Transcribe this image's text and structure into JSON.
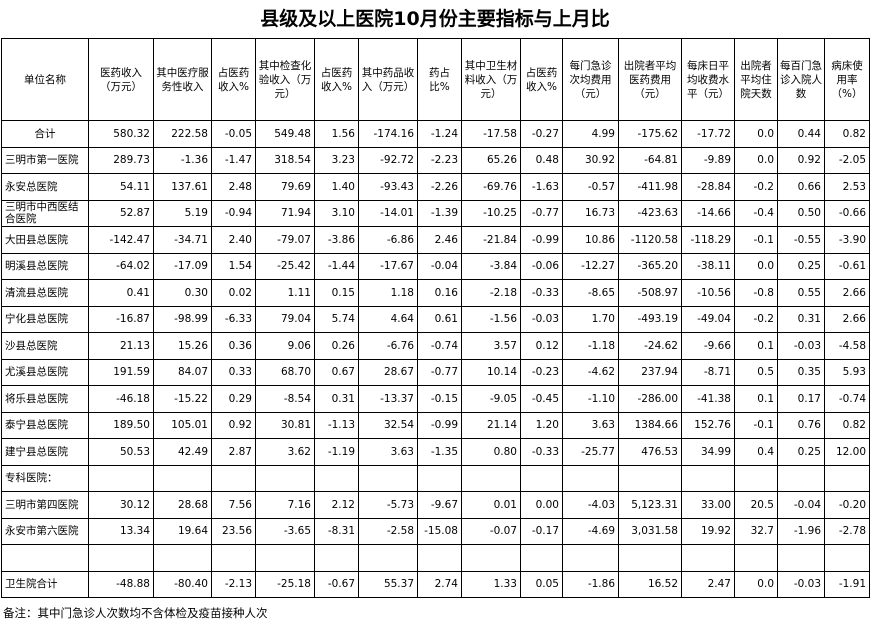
{
  "title": "县级及以上医院10月份主要指标与上月比",
  "table": {
    "header": [
      "单位名称",
      "医药收入（万元）",
      "其中医疗服务性收入",
      "占医药收入%",
      "其中检查化验收入（万元）",
      "占医药收入%",
      "其中药品收入（万元）",
      "药占比%",
      "其中卫生材料收入（万元）",
      "占医药收入%",
      "每门急诊次均费用（元）",
      "出院者平均医药费用（元）",
      "每床日平均收费水平（元）",
      "出院者平均住院天数",
      "每百门急诊入院人数",
      "病床使用率（%）"
    ],
    "rows": [
      [
        "合计",
        "580.32",
        "222.58",
        "-0.05",
        "549.48",
        "1.56",
        "-174.16",
        "-1.24",
        "-17.58",
        "-0.27",
        "4.99",
        "-175.62",
        "-17.72",
        "0.0",
        "0.44",
        "0.82"
      ],
      [
        "三明市第一医院",
        "289.73",
        "-1.36",
        "-1.47",
        "318.54",
        "3.23",
        "-92.72",
        "-2.23",
        "65.26",
        "0.48",
        "30.92",
        "-64.81",
        "-9.89",
        "0.0",
        "0.92",
        "-2.05"
      ],
      [
        "永安总医院",
        "54.11",
        "137.61",
        "2.48",
        "79.69",
        "1.40",
        "-93.43",
        "-2.26",
        "-69.76",
        "-1.63",
        "-0.57",
        "-411.98",
        "-28.84",
        "-0.2",
        "0.66",
        "2.53"
      ],
      [
        "三明市中西医结合医院",
        "52.87",
        "5.19",
        "-0.94",
        "71.94",
        "3.10",
        "-14.01",
        "-1.39",
        "-10.25",
        "-0.77",
        "16.73",
        "-423.63",
        "-14.66",
        "-0.4",
        "0.50",
        "-0.66"
      ],
      [
        "大田县总医院",
        "-142.47",
        "-34.71",
        "2.40",
        "-79.07",
        "-3.86",
        "-6.86",
        "2.46",
        "-21.84",
        "-0.99",
        "10.86",
        "-1120.58",
        "-118.29",
        "-0.1",
        "-0.55",
        "-3.90"
      ],
      [
        "明溪县总医院",
        "-64.02",
        "-17.09",
        "1.54",
        "-25.42",
        "-1.44",
        "-17.67",
        "-0.04",
        "-3.84",
        "-0.06",
        "-12.27",
        "-365.20",
        "-38.11",
        "0.0",
        "0.25",
        "-0.61"
      ],
      [
        "清流县总医院",
        "0.41",
        "0.30",
        "0.02",
        "1.11",
        "0.15",
        "1.18",
        "0.16",
        "-2.18",
        "-0.33",
        "-8.65",
        "-508.97",
        "-10.56",
        "-0.8",
        "0.55",
        "2.66"
      ],
      [
        "宁化县总医院",
        "-16.87",
        "-98.99",
        "-6.33",
        "79.04",
        "5.74",
        "4.64",
        "0.61",
        "-1.56",
        "-0.03",
        "1.70",
        "-493.19",
        "-49.04",
        "-0.2",
        "0.31",
        "2.66"
      ],
      [
        "沙县总医院",
        "21.13",
        "15.26",
        "0.36",
        "9.06",
        "0.26",
        "-6.76",
        "-0.74",
        "3.57",
        "0.12",
        "-1.18",
        "-24.62",
        "-9.66",
        "0.1",
        "-0.03",
        "-4.58"
      ],
      [
        "尤溪县总医院",
        "191.59",
        "84.07",
        "0.33",
        "68.70",
        "0.67",
        "28.67",
        "-0.77",
        "10.14",
        "-0.23",
        "-4.62",
        "237.94",
        "-8.71",
        "0.5",
        "0.35",
        "5.93"
      ],
      [
        "将乐县总医院",
        "-46.18",
        "-15.22",
        "0.29",
        "-8.54",
        "0.31",
        "-13.37",
        "-0.15",
        "-9.05",
        "-0.45",
        "-1.10",
        "-286.00",
        "-41.38",
        "0.1",
        "0.17",
        "-0.74"
      ],
      [
        "泰宁县总医院",
        "189.50",
        "105.01",
        "0.92",
        "30.81",
        "-1.13",
        "32.54",
        "-0.99",
        "21.14",
        "1.20",
        "3.63",
        "1384.66",
        "152.76",
        "-0.1",
        "0.76",
        "0.82"
      ],
      [
        "建宁县总医院",
        "50.53",
        "42.49",
        "2.87",
        "3.62",
        "-1.19",
        "3.63",
        "-1.35",
        "0.80",
        "-0.33",
        "-25.77",
        "476.53",
        "34.99",
        "0.4",
        "0.25",
        "12.00"
      ]
    ],
    "specialty_label": "专科医院：",
    "specialty_rows": [
      [
        "三明市第四医院",
        "30.12",
        "28.68",
        "7.56",
        "7.16",
        "2.12",
        "-5.73",
        "-9.67",
        "0.01",
        "0.00",
        "-4.03",
        "5,123.31",
        "33.00",
        "20.5",
        "-0.04",
        "-0.20"
      ],
      [
        "永安市第六医院",
        "13.34",
        "19.64",
        "23.56",
        "-3.65",
        "-8.31",
        "-2.58",
        "-15.08",
        "-0.07",
        "-0.17",
        "-4.69",
        "3,031.58",
        "19.92",
        "32.7",
        "-1.96",
        "-2.78"
      ]
    ],
    "township_rows": [
      [
        "卫生院合计",
        "-48.88",
        "-80.40",
        "-2.13",
        "-25.18",
        "-0.67",
        "55.37",
        "2.74",
        "1.33",
        "0.05",
        "-1.86",
        "16.52",
        "2.47",
        "0.0",
        "-0.03",
        "-1.91"
      ]
    ]
  },
  "note": "备注：其中门急诊人次数均不含体检及疫苗接种人次"
}
